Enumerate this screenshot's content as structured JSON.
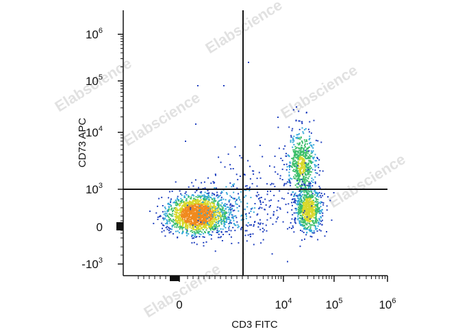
{
  "watermark": "Elabscience",
  "chart_data": {
    "type": "scatter",
    "subtype": "flow-cytometry-density-dot-plot",
    "xlabel": "CD3 FITC",
    "ylabel": "CD73 APC",
    "x_scale": "biexponential (log above ~10^3)",
    "y_scale": "biexponential (log above ~10^3)",
    "x_ticks": [
      {
        "base": "0",
        "exp": ""
      },
      {
        "base": "10",
        "exp": "4"
      },
      {
        "base": "10",
        "exp": "5"
      },
      {
        "base": "10",
        "exp": "6"
      }
    ],
    "y_ticks": [
      {
        "base": "10",
        "exp": "6"
      },
      {
        "base": "10",
        "exp": "5"
      },
      {
        "base": "10",
        "exp": "4"
      },
      {
        "base": "10",
        "exp": "3"
      },
      {
        "base": "0",
        "exp": ""
      },
      {
        "base": "-10",
        "exp": "3"
      }
    ],
    "quadrant_gate": {
      "x": 3000,
      "y": 1000
    },
    "populations": [
      {
        "name_shown": "",
        "x_center": 300,
        "y_center": 300,
        "relative_density": "very high"
      },
      {
        "name_shown": "",
        "x_center": 30000,
        "y_center": 3000,
        "relative_density": "medium"
      },
      {
        "name_shown": "",
        "x_center": 40000,
        "y_center": 300,
        "relative_density": "medium-high"
      }
    ],
    "color_scale": [
      "#1f3fbf",
      "#2fa6d8",
      "#3cbf6a",
      "#d8d82a",
      "#f08a1e",
      "#e02020"
    ],
    "grid": false,
    "legend": "none"
  }
}
